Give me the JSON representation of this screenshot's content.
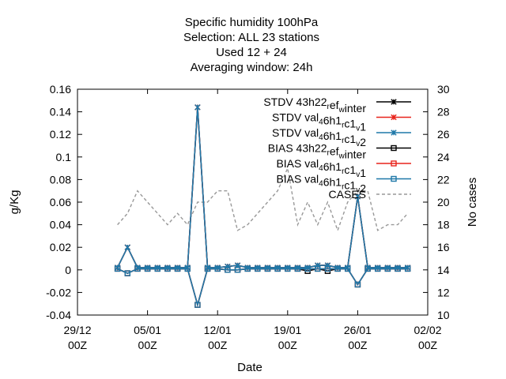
{
  "chart_data": {
    "type": "line",
    "title_lines": [
      "Specific humidity 100hPa",
      "Selection: ALL     23 stations",
      "Used  12  + 24",
      "Averaging window: 24h"
    ],
    "xlabel": "Date",
    "ylabel": "g/Kg",
    "y2label": "No cases",
    "xlim": [
      0,
      34
    ],
    "ylim": [
      -0.04,
      0.16
    ],
    "y2lim": [
      10,
      30
    ],
    "x_ticks": [
      {
        "x": 0,
        "label": [
          "29/12",
          "00Z"
        ]
      },
      {
        "x": 7,
        "label": [
          "05/01",
          "00Z"
        ]
      },
      {
        "x": 14,
        "label": [
          "12/01",
          "00Z"
        ]
      },
      {
        "x": 21,
        "label": [
          "19/01",
          "00Z"
        ]
      },
      {
        "x": 28,
        "label": [
          "26/01",
          "00Z"
        ]
      },
      {
        "x": 35,
        "label": [
          "02/02",
          "00Z"
        ]
      }
    ],
    "y_ticks": [
      -0.04,
      -0.02,
      0,
      0.02,
      0.04,
      0.06,
      0.08,
      0.1,
      0.12,
      0.14,
      0.16
    ],
    "y_tick_labels": [
      "-0.04",
      "-0.02",
      "0",
      "0.02",
      "0.04",
      "0.06",
      "0.08",
      "0.1",
      "0.12",
      "0.14",
      "0.16"
    ],
    "y2_ticks": [
      10,
      12,
      14,
      16,
      18,
      20,
      22,
      24,
      26,
      28,
      30
    ],
    "grid": false,
    "legend_position": "top-right",
    "x": [
      4,
      5,
      6,
      7,
      8,
      9,
      10,
      11,
      12,
      13,
      14,
      15,
      16,
      17,
      18,
      19,
      20,
      21,
      22,
      23,
      24,
      25,
      26,
      27,
      28,
      29,
      30,
      31,
      32,
      33
    ],
    "series": [
      {
        "name": "STDV 43h22 ref w inter",
        "name_parts": [
          [
            "STDV 43h22",
            "n"
          ],
          [
            "r",
            "sub"
          ],
          [
            "ef",
            "n"
          ],
          [
            "w",
            "sub"
          ],
          [
            "inter",
            "n"
          ]
        ],
        "color": "#000000",
        "marker": "x",
        "dash": false,
        "axis": "y",
        "values": [
          0.002,
          0.02,
          0.002,
          0.002,
          0.002,
          0.002,
          0.002,
          0.002,
          0.144,
          0.002,
          0.002,
          0.003,
          0.004,
          0.002,
          0.002,
          0.002,
          0.002,
          0.002,
          0.002,
          0.002,
          0.004,
          0.004,
          0.002,
          0.002,
          0.065,
          0.002,
          0.002,
          0.002,
          0.002,
          0.002
        ]
      },
      {
        "name": "STDV val 4 6h1 r c1 v 1",
        "name_parts": [
          [
            "STDV val",
            "n"
          ],
          [
            "4",
            "sub"
          ],
          [
            "6h1",
            "n"
          ],
          [
            "r",
            "sub"
          ],
          [
            "c1",
            "n"
          ],
          [
            "v",
            "sub"
          ],
          [
            "1",
            "n"
          ]
        ],
        "color": "#e8231b",
        "marker": "x",
        "dash": false,
        "axis": "y",
        "values": [
          0.002,
          0.02,
          0.002,
          0.002,
          0.002,
          0.002,
          0.002,
          0.002,
          0.144,
          0.002,
          0.002,
          0.003,
          0.004,
          0.002,
          0.002,
          0.002,
          0.002,
          0.002,
          0.002,
          0.002,
          0.004,
          0.004,
          0.002,
          0.002,
          0.065,
          0.002,
          0.002,
          0.002,
          0.002,
          0.002
        ]
      },
      {
        "name": "STDV val 4 6h1 r c1 v 2",
        "name_parts": [
          [
            "STDV val",
            "n"
          ],
          [
            "4",
            "sub"
          ],
          [
            "6h1",
            "n"
          ],
          [
            "r",
            "sub"
          ],
          [
            "c1",
            "n"
          ],
          [
            "v",
            "sub"
          ],
          [
            "2",
            "n"
          ]
        ],
        "color": "#1f78a8",
        "marker": "x",
        "dash": false,
        "axis": "y",
        "values": [
          0.002,
          0.02,
          0.002,
          0.002,
          0.002,
          0.002,
          0.002,
          0.002,
          0.144,
          0.002,
          0.002,
          0.003,
          0.004,
          0.002,
          0.002,
          0.002,
          0.002,
          0.002,
          0.002,
          0.002,
          0.004,
          0.004,
          0.002,
          0.002,
          0.065,
          0.002,
          0.002,
          0.002,
          0.002,
          0.002
        ]
      },
      {
        "name": "BIAS 43h22 ref w inter",
        "name_parts": [
          [
            "BIAS 43h22",
            "n"
          ],
          [
            "r",
            "sub"
          ],
          [
            "ef",
            "n"
          ],
          [
            "w",
            "sub"
          ],
          [
            "inter",
            "n"
          ]
        ],
        "color": "#000000",
        "marker": "square",
        "dash": false,
        "axis": "y",
        "values": [
          0.001,
          -0.003,
          0.001,
          0.001,
          0.001,
          0.001,
          0.001,
          0.001,
          -0.031,
          0.001,
          0.001,
          0.0,
          0.0,
          0.001,
          0.001,
          0.001,
          0.001,
          0.001,
          0.001,
          -0.001,
          0.001,
          -0.001,
          0.001,
          0.001,
          -0.013,
          0.001,
          0.001,
          0.001,
          0.001,
          0.001
        ]
      },
      {
        "name": "BIAS val 4 6h1 r c1 v 1",
        "name_parts": [
          [
            "BIAS val",
            "n"
          ],
          [
            "4",
            "sub"
          ],
          [
            "6h1",
            "n"
          ],
          [
            "r",
            "sub"
          ],
          [
            "c1",
            "n"
          ],
          [
            "v",
            "sub"
          ],
          [
            "1",
            "n"
          ]
        ],
        "color": "#e8231b",
        "marker": "square",
        "dash": false,
        "axis": "y",
        "values": [
          0.001,
          -0.003,
          0.001,
          0.001,
          0.001,
          0.001,
          0.001,
          0.001,
          -0.031,
          0.001,
          0.001,
          0.0,
          0.0,
          0.001,
          0.001,
          0.001,
          0.001,
          0.001,
          0.001,
          0.001,
          0.001,
          0.001,
          0.001,
          0.001,
          -0.013,
          0.001,
          0.001,
          0.001,
          0.001,
          0.001
        ]
      },
      {
        "name": "BIAS val 4 6h1 r c1 v 2",
        "name_parts": [
          [
            "BIAS val",
            "n"
          ],
          [
            "4",
            "sub"
          ],
          [
            "6h1",
            "n"
          ],
          [
            "r",
            "sub"
          ],
          [
            "c1",
            "n"
          ],
          [
            "v",
            "sub"
          ],
          [
            "2",
            "n"
          ]
        ],
        "color": "#1f78a8",
        "marker": "square",
        "dash": false,
        "axis": "y",
        "values": [
          0.001,
          -0.003,
          0.001,
          0.001,
          0.001,
          0.001,
          0.001,
          0.001,
          -0.031,
          0.001,
          0.001,
          0.0,
          0.0,
          0.001,
          0.001,
          0.001,
          0.001,
          0.001,
          0.001,
          0.001,
          0.001,
          0.001,
          0.001,
          0.001,
          -0.013,
          0.001,
          0.001,
          0.001,
          0.001,
          0.001
        ]
      },
      {
        "name": "CASES",
        "name_parts": [
          [
            "CASES",
            "n"
          ]
        ],
        "color": "#999999",
        "marker": "none",
        "dash": true,
        "axis": "y2",
        "values": [
          18,
          19,
          21,
          20,
          19,
          18,
          19,
          18,
          20,
          20,
          21,
          21,
          17.5,
          18,
          19,
          20,
          21,
          23,
          18,
          20,
          18,
          20,
          17.5,
          20,
          21,
          21,
          17.5,
          18,
          18,
          19
        ]
      }
    ]
  }
}
